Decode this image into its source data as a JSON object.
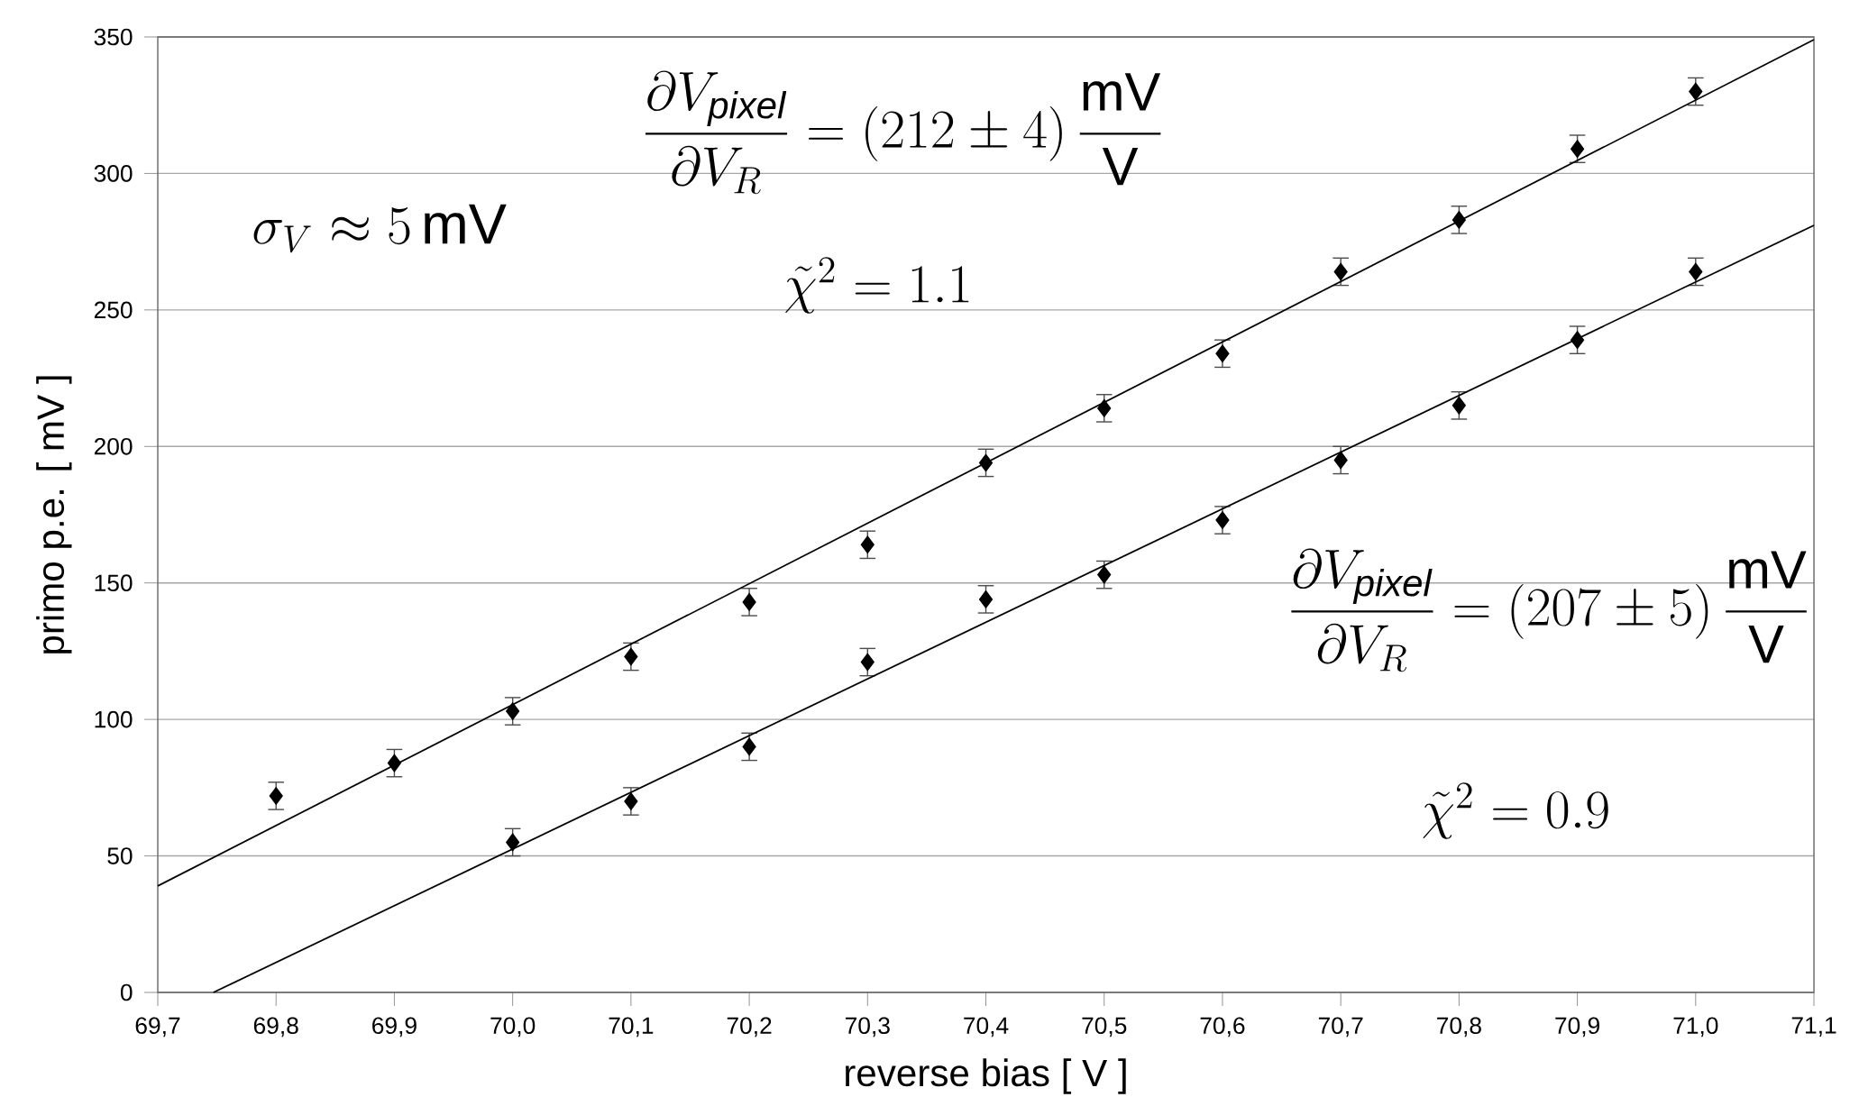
{
  "chart_data": {
    "type": "scatter",
    "xlabel": "reverse bias   [ V ]",
    "ylabel": "primo p.e.  [ mV ]",
    "xlim": [
      69.7,
      71.1
    ],
    "ylim": [
      0,
      350
    ],
    "xticks": [
      {
        "value": 69.7,
        "label": "69,7"
      },
      {
        "value": 69.8,
        "label": "69,8"
      },
      {
        "value": 69.9,
        "label": "69,9"
      },
      {
        "value": 70.0,
        "label": "70,0"
      },
      {
        "value": 70.1,
        "label": "70,1"
      },
      {
        "value": 70.2,
        "label": "70,2"
      },
      {
        "value": 70.3,
        "label": "70,3"
      },
      {
        "value": 70.4,
        "label": "70,4"
      },
      {
        "value": 70.5,
        "label": "70,5"
      },
      {
        "value": 70.6,
        "label": "70,6"
      },
      {
        "value": 70.7,
        "label": "70,7"
      },
      {
        "value": 70.8,
        "label": "70,8"
      },
      {
        "value": 70.9,
        "label": "70,9"
      },
      {
        "value": 71.0,
        "label": "71,0"
      },
      {
        "value": 71.1,
        "label": "71,1"
      }
    ],
    "yticks": [
      0,
      50,
      100,
      150,
      200,
      250,
      300,
      350
    ],
    "grid": "y",
    "series": [
      {
        "marker": "diamond",
        "color": "#000000",
        "x": [
          69.8,
          69.9,
          70.0,
          70.1,
          70.2,
          70.3,
          70.4,
          70.5,
          70.6,
          70.7,
          70.8,
          70.9,
          71.0
        ],
        "values": [
          72,
          84,
          103,
          123,
          143,
          164,
          194,
          214,
          234,
          264,
          283,
          309,
          330
        ],
        "errors": [
          5,
          5,
          5,
          5,
          5,
          5,
          5,
          5,
          5,
          5,
          5,
          5,
          5
        ]
      },
      {
        "marker": "diamond",
        "color": "#000000",
        "x": [
          70.0,
          70.1,
          70.2,
          70.3,
          70.4,
          70.5,
          70.6,
          70.7,
          70.8,
          70.9,
          71.0
        ],
        "values": [
          55,
          70,
          90,
          121,
          144,
          153,
          173,
          195,
          215,
          239,
          264
        ],
        "errors": [
          5,
          5,
          5,
          5,
          5,
          5,
          5,
          5,
          5,
          5,
          5
        ]
      },
      {
        "type": "line",
        "marker": "none",
        "color": "#000000",
        "x": [
          69.7,
          71.1
        ],
        "values": [
          39,
          349
        ]
      },
      {
        "type": "line",
        "marker": "none",
        "color": "#000000",
        "x": [
          69.747,
          71.1
        ],
        "values": [
          0,
          281
        ]
      }
    ],
    "annotations": [
      "\\sigma_V \\approx 5\\,\\mathrm{mV}",
      "\\dfrac{\\partial V_{\\mathit{pixel}}}{\\partial V_R} = (212 \\pm 4)\\,\\dfrac{\\mathrm{mV}}{\\mathrm{V}}",
      "\\tilde{\\chi}^2 = 1.1",
      "\\dfrac{\\partial V_{\\mathit{pixel}}}{\\partial V_R} = (207 \\pm 5)\\,\\dfrac{\\mathrm{mV}}{\\mathrm{V}}",
      "\\tilde{\\chi}^2 = 0.9"
    ]
  }
}
